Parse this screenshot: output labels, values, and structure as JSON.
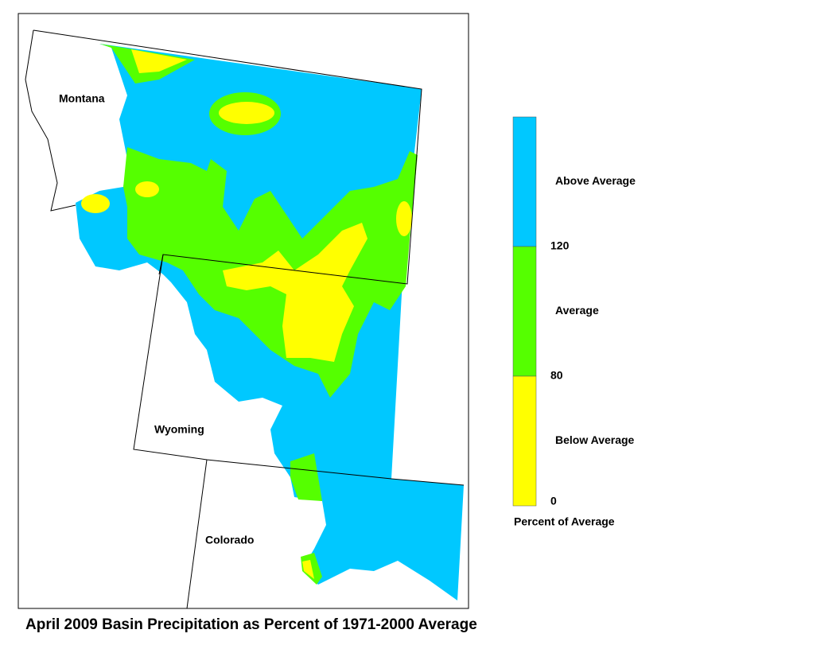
{
  "map": {
    "title": "April 2009 Basin Precipitation as Percent of 1971-2000 Average",
    "states": [
      "Montana",
      "Wyoming",
      "Colorado"
    ],
    "legend": {
      "title": "Percent of Average",
      "classes": [
        {
          "label": "Above Average",
          "color": "#00c8ff"
        },
        {
          "label": "Average",
          "color": "#55ff00"
        },
        {
          "label": "Below Average",
          "color": "#ffff00"
        }
      ],
      "ticks": [
        120,
        80,
        0
      ]
    }
  }
}
